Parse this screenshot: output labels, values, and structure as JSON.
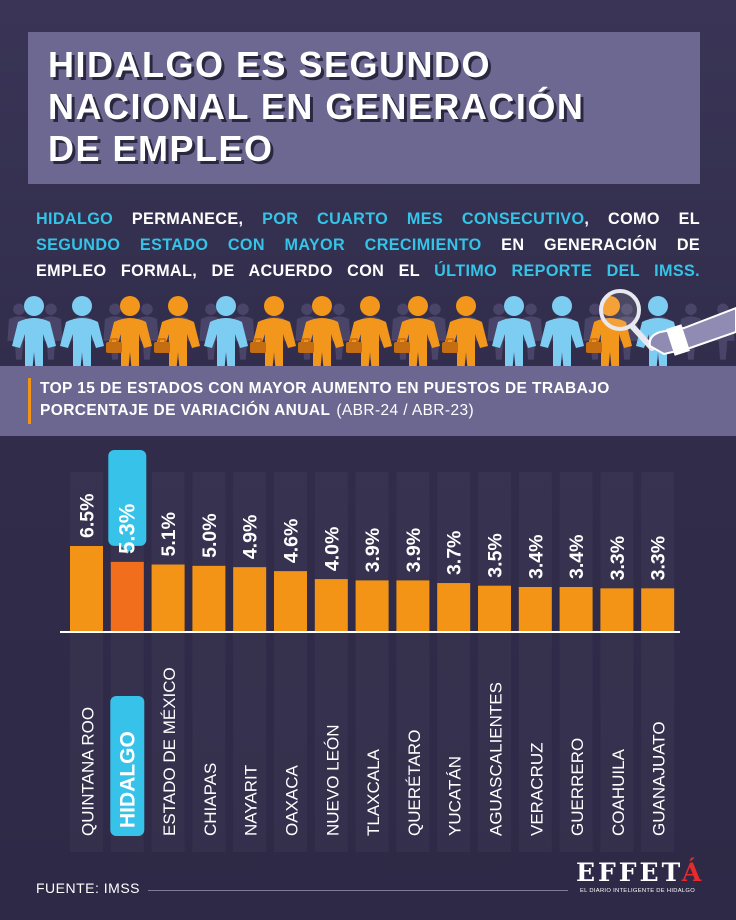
{
  "header": {
    "title_lines": [
      "HIDALGO ES SEGUNDO",
      "NACIONAL EN GENERACIÓN",
      "DE EMPLEO"
    ]
  },
  "intro": {
    "line1": [
      {
        "text": "HIDALGO",
        "hl": true
      },
      {
        "text": " PERMANECE, ",
        "hl": false
      },
      {
        "text": "POR CUARTO MES CONSECUTIVO",
        "hl": true
      },
      {
        "text": ", COMO EL",
        "hl": false
      }
    ],
    "line2": [
      {
        "text": "SEGUNDO ESTADO CON MAYOR CRECIMIENTO",
        "hl": true
      },
      {
        "text": " EN GENERACIÓN DE",
        "hl": false
      }
    ],
    "line3": [
      {
        "text": "EMPLEO FORMAL, DE ACUERDO CON EL ",
        "hl": false
      },
      {
        "text": "ÚLTIMO REPORTE DEL IMSS.",
        "hl": true
      }
    ]
  },
  "subtitle": {
    "line1": "TOP 15 DE ESTADOS CON MAYOR AUMENTO EN PUESTOS DE TRABAJO",
    "line2": "PORCENTAJE DE VARIACIÓN ANUAL",
    "period": "(ABR-24 / ABR-23)"
  },
  "colors": {
    "bar": "#f39417",
    "bar_highlight": "#f06e1c",
    "highlight_box": "#37c2ea",
    "accent": "#35c3e8"
  },
  "chart_data": {
    "type": "bar",
    "categories": [
      "QUINTANA ROO",
      "HIDALGO",
      "ESTADO DE MÉXICO",
      "CHIAPAS",
      "NAYARIT",
      "OAXACA",
      "NUEVO LEÓN",
      "TLAXCALA",
      "QUERÉTARO",
      "YUCATÁN",
      "AGUASCALIENTES",
      "VERACRUZ",
      "GUERRERO",
      "COAHUILA",
      "GUANAJUATO"
    ],
    "values": [
      6.5,
      5.3,
      5.1,
      5.0,
      4.9,
      4.6,
      4.0,
      3.9,
      3.9,
      3.7,
      3.5,
      3.4,
      3.4,
      3.3,
      3.3
    ],
    "value_labels": [
      "6.5%",
      "5.3%",
      "5.1%",
      "5.0%",
      "4.9%",
      "4.6%",
      "4.0%",
      "3.9%",
      "3.9%",
      "3.7%",
      "3.5%",
      "3.4%",
      "3.4%",
      "3.3%",
      "3.3%"
    ],
    "highlight": "HIDALGO",
    "ylim": [
      0,
      6.5
    ],
    "grid": false,
    "legend": "none"
  },
  "footer": {
    "source": "FUENTE: IMSS",
    "logo_main": "EFFET",
    "logo_accent": "Á",
    "tagline": "EL DIARIO INTELIGENTE DE HIDALGO"
  }
}
